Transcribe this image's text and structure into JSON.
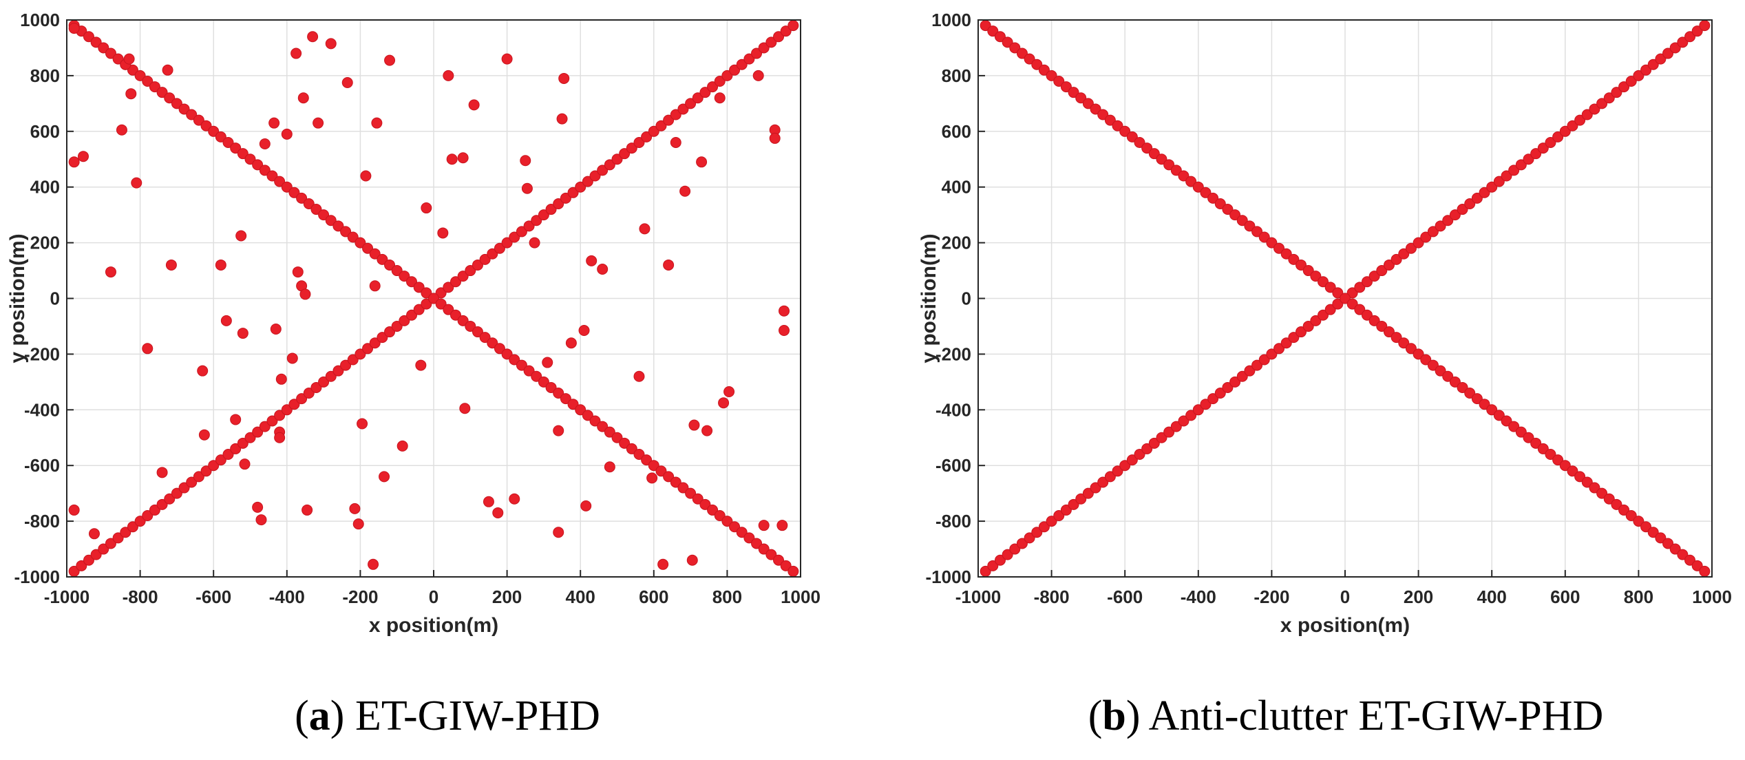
{
  "figure": {
    "colors": {
      "marker": "#e8202a",
      "marker_edge": "#c8141e",
      "grid": "#dfdfdf",
      "axis": "#262626"
    },
    "panels": [
      {
        "id": "a",
        "caption_letter": "a",
        "caption_text": "ET-GIW-PHD",
        "chart_data": {
          "type": "scatter",
          "title": "",
          "xlabel": "x position(m)",
          "ylabel": "y position(m)",
          "xlim": [
            -1000,
            1000
          ],
          "ylim": [
            -1000,
            1000
          ],
          "xticks": [
            -1000,
            -800,
            -600,
            -400,
            -200,
            0,
            200,
            400,
            600,
            800,
            1000
          ],
          "yticks": [
            -1000,
            -800,
            -600,
            -400,
            -200,
            0,
            200,
            400,
            600,
            800,
            1000
          ],
          "grid": true,
          "series": [
            {
              "name": "target-track-ascending",
              "pattern": "diagonal",
              "from": -980,
              "to": 980,
              "step": 20,
              "slope": 1
            },
            {
              "name": "target-track-descending",
              "pattern": "diagonal",
              "from": -980,
              "to": 980,
              "step": 20,
              "slope": -1
            },
            {
              "name": "clutter",
              "points": [
                [
                  -980,
                  970
                ],
                [
                  -980,
                  490
                ],
                [
                  -955,
                  510
                ],
                [
                  -980,
                  -760
                ],
                [
                  -925,
                  -845
                ],
                [
                  -880,
                  95
                ],
                [
                  -850,
                  605
                ],
                [
                  -840,
                  840
                ],
                [
                  -830,
                  860
                ],
                [
                  -825,
                  735
                ],
                [
                  -810,
                  415
                ],
                [
                  -780,
                  -180
                ],
                [
                  -740,
                  -625
                ],
                [
                  -725,
                  820
                ],
                [
                  -715,
                  120
                ],
                [
                  -630,
                  -260
                ],
                [
                  -625,
                  -490
                ],
                [
                  -580,
                  120
                ],
                [
                  -565,
                  -80
                ],
                [
                  -540,
                  -435
                ],
                [
                  -525,
                  225
                ],
                [
                  -520,
                  -125
                ],
                [
                  -515,
                  -595
                ],
                [
                  -480,
                  -750
                ],
                [
                  -470,
                  -795
                ],
                [
                  -460,
                  555
                ],
                [
                  -435,
                  630
                ],
                [
                  -430,
                  -110
                ],
                [
                  -420,
                  -480
                ],
                [
                  -420,
                  -500
                ],
                [
                  -415,
                  -290
                ],
                [
                  -400,
                  590
                ],
                [
                  -385,
                  -215
                ],
                [
                  -375,
                  880
                ],
                [
                  -370,
                  95
                ],
                [
                  -360,
                  45
                ],
                [
                  -355,
                  720
                ],
                [
                  -350,
                  15
                ],
                [
                  -345,
                  -760
                ],
                [
                  -330,
                  940
                ],
                [
                  -315,
                  630
                ],
                [
                  -280,
                  915
                ],
                [
                  -235,
                  775
                ],
                [
                  -215,
                  -755
                ],
                [
                  -205,
                  -810
                ],
                [
                  -195,
                  -450
                ],
                [
                  -185,
                  440
                ],
                [
                  -165,
                  -955
                ],
                [
                  -160,
                  45
                ],
                [
                  -155,
                  630
                ],
                [
                  -135,
                  -640
                ],
                [
                  -120,
                  855
                ],
                [
                  -85,
                  -530
                ],
                [
                  -35,
                  -240
                ],
                [
                  -20,
                  325
                ],
                [
                  25,
                  235
                ],
                [
                  40,
                  800
                ],
                [
                  50,
                  500
                ],
                [
                  80,
                  505
                ],
                [
                  85,
                  -395
                ],
                [
                  110,
                  695
                ],
                [
                  150,
                  -730
                ],
                [
                  175,
                  -770
                ],
                [
                  200,
                  860
                ],
                [
                  220,
                  -720
                ],
                [
                  250,
                  495
                ],
                [
                  255,
                  395
                ],
                [
                  275,
                  200
                ],
                [
                  310,
                  -230
                ],
                [
                  340,
                  -475
                ],
                [
                  340,
                  -840
                ],
                [
                  350,
                  645
                ],
                [
                  355,
                  790
                ],
                [
                  375,
                  -160
                ],
                [
                  410,
                  -115
                ],
                [
                  415,
                  -745
                ],
                [
                  430,
                  135
                ],
                [
                  460,
                  105
                ],
                [
                  480,
                  -605
                ],
                [
                  560,
                  -280
                ],
                [
                  575,
                  250
                ],
                [
                  595,
                  -645
                ],
                [
                  625,
                  -955
                ],
                [
                  640,
                  120
                ],
                [
                  660,
                  560
                ],
                [
                  685,
                  385
                ],
                [
                  705,
                  -940
                ],
                [
                  710,
                  -455
                ],
                [
                  730,
                  490
                ],
                [
                  745,
                  -475
                ],
                [
                  780,
                  720
                ],
                [
                  790,
                  -375
                ],
                [
                  805,
                  -335
                ],
                [
                  885,
                  800
                ],
                [
                  900,
                  -815
                ],
                [
                  930,
                  605
                ],
                [
                  930,
                  575
                ],
                [
                  950,
                  -815
                ],
                [
                  955,
                  -45
                ],
                [
                  955,
                  -115
                ]
              ]
            }
          ]
        }
      },
      {
        "id": "b",
        "caption_letter": "b",
        "caption_text": "Anti-clutter ET-GIW-PHD",
        "chart_data": {
          "type": "scatter",
          "title": "",
          "xlabel": "x position(m)",
          "ylabel": "y position(m)",
          "xlim": [
            -1000,
            1000
          ],
          "ylim": [
            -1000,
            1000
          ],
          "xticks": [
            -1000,
            -800,
            -600,
            -400,
            -200,
            0,
            200,
            400,
            600,
            800,
            1000
          ],
          "yticks": [
            -1000,
            -800,
            -600,
            -400,
            -200,
            0,
            200,
            400,
            600,
            800,
            1000
          ],
          "grid": true,
          "series": [
            {
              "name": "target-track-ascending",
              "pattern": "diagonal",
              "from": -980,
              "to": 980,
              "step": 20,
              "slope": 1
            },
            {
              "name": "target-track-descending",
              "pattern": "diagonal",
              "from": -980,
              "to": 980,
              "step": 20,
              "slope": -1
            }
          ]
        }
      }
    ]
  }
}
